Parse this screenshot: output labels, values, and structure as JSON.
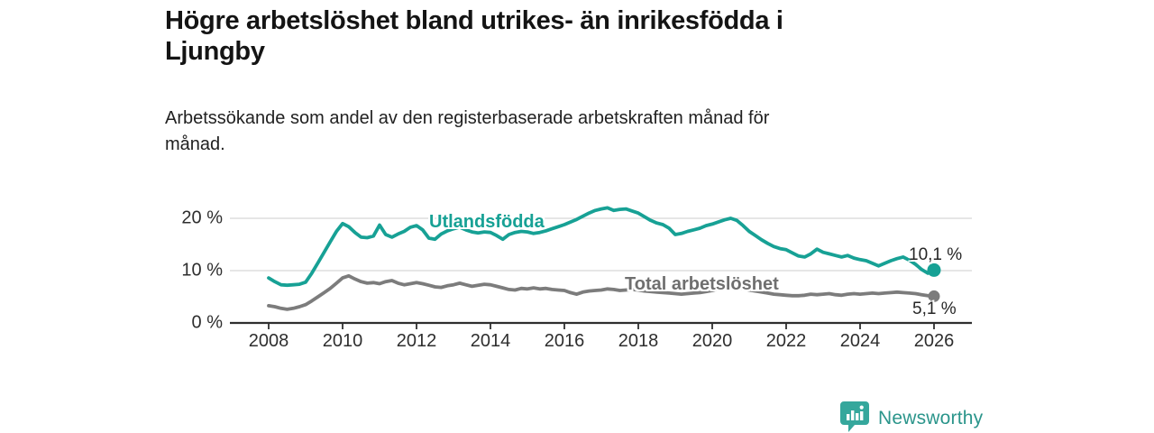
{
  "header": {
    "title_lines": [
      "Högre arbetslöshet bland utrikes- än inrikesfödda i",
      "Ljungby"
    ],
    "subtitle_lines": [
      "Arbetssökande som andel av den registerbaserade arbetskraften månad för",
      "månad."
    ]
  },
  "chart_data": {
    "type": "line",
    "unit": "%",
    "grid": "horizontal",
    "x_range": [
      2008,
      2026
    ],
    "ylim": [
      0,
      24
    ],
    "x_ticks": [
      2008,
      2010,
      2012,
      2014,
      2016,
      2018,
      2020,
      2022,
      2024,
      2026
    ],
    "x_tick_labels": [
      "2008",
      "2010",
      "2012",
      "2014",
      "2016",
      "2018",
      "2020",
      "2022",
      "2024",
      "2026"
    ],
    "y_ticks": [
      0,
      10,
      20
    ],
    "y_tick_labels": [
      "0 %",
      "10 %",
      "20 %"
    ],
    "colors": {
      "axis": "#2f2f2f",
      "grid": "#d8d8d8",
      "label_text": "#2e2e2e"
    },
    "series": [
      {
        "name": "Utlandsfödda",
        "color": "#17a195",
        "start_year": 2008.0,
        "step_months": 2,
        "end_value": 10.1,
        "end_label": "10,1 %",
        "values": [
          8.6,
          7.9,
          7.3,
          7.2,
          7.3,
          7.4,
          7.8,
          9.5,
          11.5,
          13.5,
          15.5,
          17.5,
          19.0,
          18.4,
          17.3,
          16.4,
          16.3,
          16.6,
          18.7,
          16.9,
          16.4,
          17.0,
          17.5,
          18.3,
          18.6,
          17.8,
          16.2,
          16.0,
          17.0,
          17.6,
          18.0,
          18.3,
          17.8,
          17.4,
          17.2,
          17.4,
          17.3,
          16.7,
          16.0,
          16.9,
          17.3,
          17.5,
          17.4,
          17.1,
          17.3,
          17.6,
          18.0,
          18.4,
          18.8,
          19.3,
          19.8,
          20.4,
          21.0,
          21.5,
          21.8,
          22.0,
          21.5,
          21.7,
          21.8,
          21.4,
          21.0,
          20.3,
          19.6,
          19.1,
          18.8,
          18.1,
          16.9,
          17.1,
          17.5,
          17.8,
          18.1,
          18.6,
          18.9,
          19.3,
          19.7,
          20.0,
          19.6,
          18.6,
          17.5,
          16.7,
          15.9,
          15.2,
          14.6,
          14.2,
          14.0,
          13.4,
          12.8,
          12.6,
          13.2,
          14.1,
          13.5,
          13.2,
          12.9,
          12.6,
          12.9,
          12.4,
          12.1,
          11.9,
          11.4,
          10.9,
          11.4,
          11.9,
          12.3,
          12.6,
          12.0,
          11.2,
          10.2,
          9.5,
          10.1
        ]
      },
      {
        "name": "Total arbetslöshet",
        "color": "#7c7c7c",
        "start_year": 2008.0,
        "step_months": 2,
        "end_value": 5.1,
        "end_label": "5,1 %",
        "values": [
          3.3,
          3.1,
          2.8,
          2.6,
          2.8,
          3.1,
          3.5,
          4.2,
          5.0,
          5.8,
          6.6,
          7.6,
          8.6,
          9.0,
          8.4,
          7.9,
          7.6,
          7.7,
          7.5,
          7.9,
          8.1,
          7.6,
          7.3,
          7.5,
          7.7,
          7.5,
          7.2,
          6.9,
          6.8,
          7.1,
          7.3,
          7.6,
          7.3,
          7.0,
          7.2,
          7.4,
          7.3,
          7.0,
          6.7,
          6.4,
          6.3,
          6.6,
          6.5,
          6.7,
          6.5,
          6.6,
          6.4,
          6.3,
          6.2,
          5.8,
          5.5,
          5.9,
          6.1,
          6.2,
          6.3,
          6.5,
          6.4,
          6.2,
          6.3,
          6.4,
          6.3,
          6.1,
          6.0,
          5.9,
          5.8,
          5.7,
          5.6,
          5.5,
          5.6,
          5.7,
          5.8,
          6.0,
          6.2,
          6.5,
          6.8,
          6.9,
          6.7,
          6.5,
          6.3,
          6.1,
          5.9,
          5.7,
          5.5,
          5.4,
          5.3,
          5.2,
          5.2,
          5.3,
          5.5,
          5.4,
          5.5,
          5.6,
          5.4,
          5.3,
          5.5,
          5.6,
          5.5,
          5.6,
          5.7,
          5.6,
          5.7,
          5.8,
          5.9,
          5.8,
          5.7,
          5.6,
          5.4,
          5.2,
          5.1
        ]
      }
    ]
  },
  "footer": {
    "brand": "Newsworthy",
    "brand_color": "#2b958b",
    "icon_color": "#35a79c"
  }
}
